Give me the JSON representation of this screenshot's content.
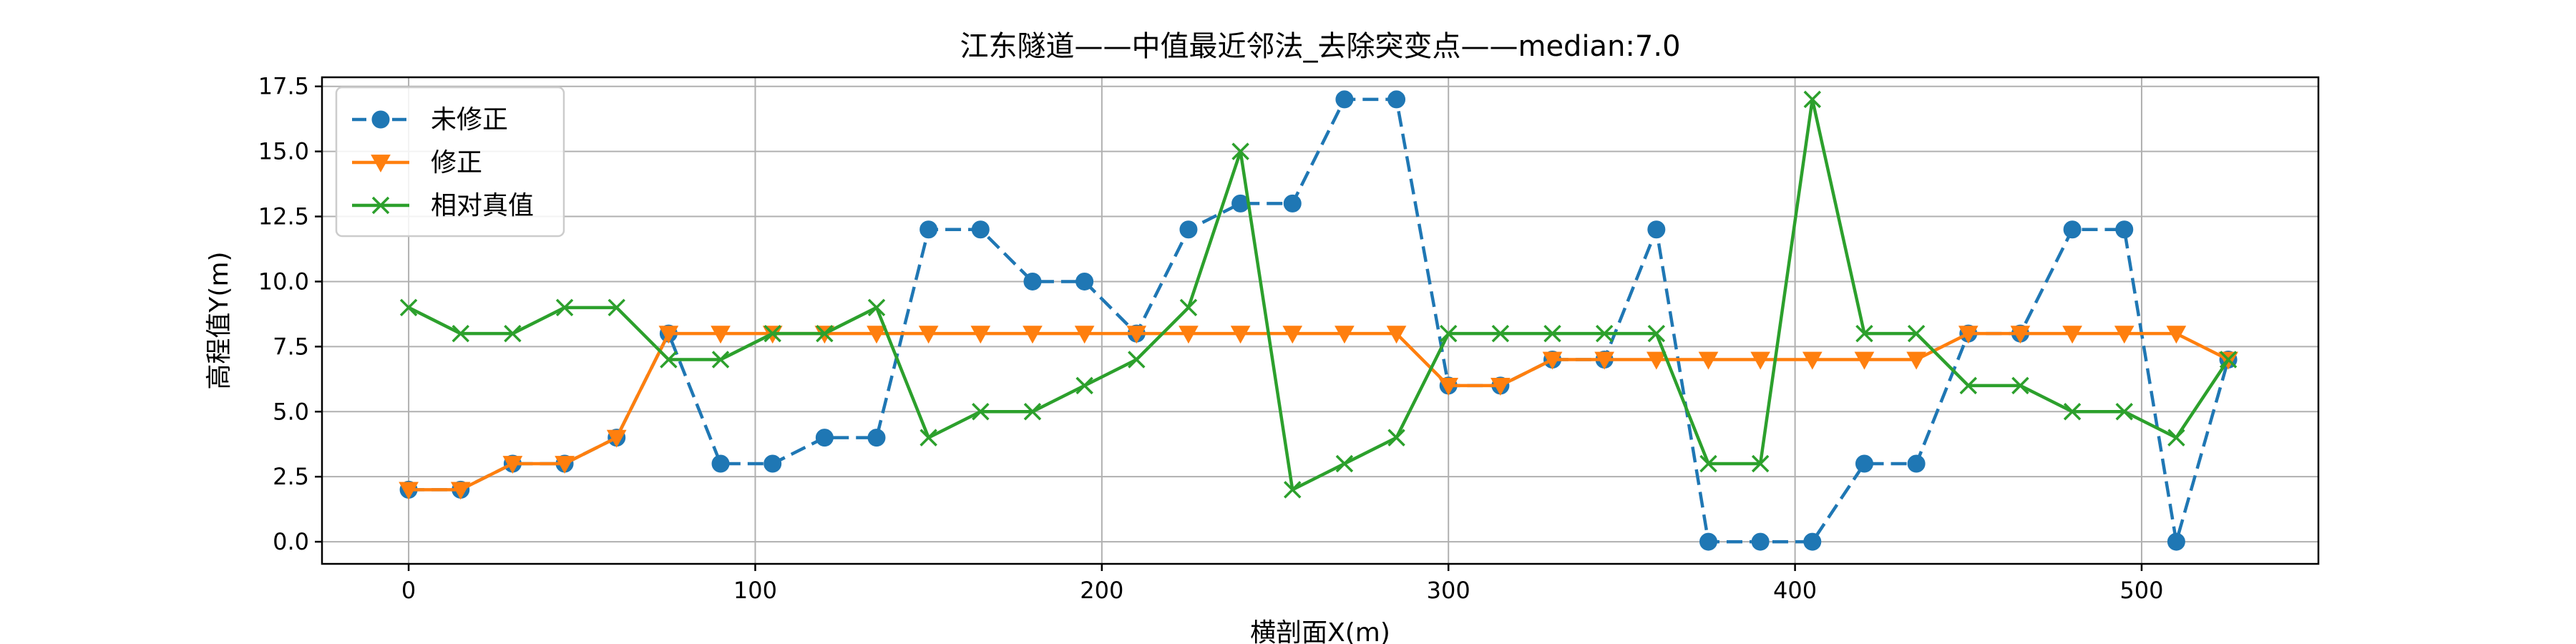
{
  "chart_data": {
    "type": "line",
    "title": "江东隧道——中值最近邻法_去除突变点——median:7.0",
    "xlabel": "横剖面X(m)",
    "ylabel": "高程值Y(m)",
    "xlim": [
      -25,
      551
    ],
    "ylim": [
      -0.85,
      17.85
    ],
    "xticks": [
      0,
      100,
      200,
      300,
      400,
      500
    ],
    "yticks": [
      0.0,
      2.5,
      5.0,
      7.5,
      10.0,
      12.5,
      15.0,
      17.5
    ],
    "xtick_labels": [
      "0",
      "100",
      "200",
      "300",
      "400",
      "500"
    ],
    "ytick_labels": [
      "0.0",
      "2.5",
      "5.0",
      "7.5",
      "10.0",
      "12.5",
      "15.0",
      "17.5"
    ],
    "grid": true,
    "legend_position": "upper-left",
    "x": [
      0,
      15,
      30,
      45,
      60,
      75,
      90,
      105,
      120,
      135,
      150,
      165,
      180,
      195,
      210,
      225,
      240,
      255,
      270,
      285,
      300,
      315,
      330,
      345,
      360,
      375,
      390,
      405,
      420,
      435,
      450,
      465,
      480,
      495,
      510,
      525
    ],
    "series": [
      {
        "name": "未修正",
        "color": "#1f77b4",
        "linestyle": "dashed",
        "marker": "circle",
        "values": [
          2,
          2,
          3,
          3,
          4,
          8,
          3,
          3,
          4,
          4,
          12,
          12,
          10,
          10,
          8,
          12,
          13,
          13,
          17,
          17,
          6,
          6,
          7,
          7,
          12,
          0,
          0,
          0,
          3,
          3,
          8,
          8,
          12,
          12,
          0,
          7
        ]
      },
      {
        "name": "修正",
        "color": "#ff7f0e",
        "linestyle": "solid",
        "marker": "triangle-down",
        "values": [
          2,
          2,
          3,
          3,
          4,
          8,
          8,
          8,
          8,
          8,
          8,
          8,
          8,
          8,
          8,
          8,
          8,
          8,
          8,
          8,
          6,
          6,
          7,
          7,
          7,
          7,
          7,
          7,
          7,
          7,
          8,
          8,
          8,
          8,
          8,
          7
        ]
      },
      {
        "name": "相对真值",
        "color": "#2ca02c",
        "linestyle": "solid",
        "marker": "x",
        "values": [
          9,
          8,
          8,
          9,
          9,
          7,
          7,
          8,
          8,
          9,
          4,
          5,
          5,
          6,
          7,
          9,
          15,
          2,
          3,
          4,
          8,
          8,
          8,
          8,
          8,
          3,
          3,
          17,
          8,
          8,
          6,
          6,
          5,
          5,
          4,
          7
        ]
      }
    ]
  }
}
